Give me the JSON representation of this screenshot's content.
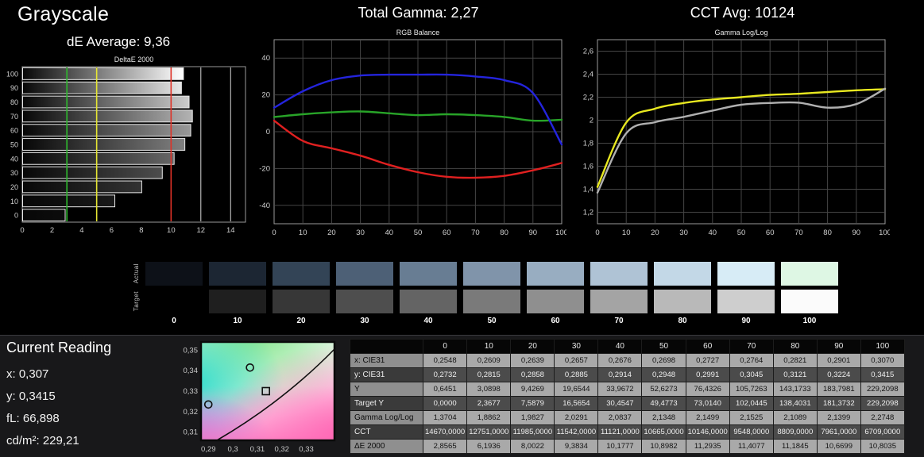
{
  "header": {
    "title": "Grayscale",
    "de_average": "dE Average: 9,36",
    "total_gamma": "Total Gamma: 2,27",
    "cct_avg": "CCT Avg: 10124"
  },
  "chart_data": [
    {
      "id": "deltae",
      "type": "bar",
      "title": "DeltaE 2000",
      "orientation": "horizontal",
      "categories": [
        100,
        90,
        80,
        70,
        60,
        50,
        40,
        30,
        20,
        10,
        0
      ],
      "values": [
        10.8035,
        10.6699,
        11.1845,
        11.4077,
        11.2935,
        10.8982,
        10.1777,
        9.3834,
        8.0022,
        6.1936,
        2.8565
      ],
      "xlim": [
        0,
        15
      ],
      "xticks": [
        0,
        2,
        4,
        6,
        8,
        10,
        12,
        14
      ],
      "grid_lines_x": [
        12,
        14
      ],
      "reference_lines": [
        {
          "x": 3,
          "color": "#2eb82e"
        },
        {
          "x": 5,
          "color": "#e6e633"
        },
        {
          "x": 10,
          "color": "#e03228"
        }
      ]
    },
    {
      "id": "rgb-balance",
      "type": "line",
      "title": "RGB Balance",
      "x": [
        0,
        10,
        20,
        30,
        40,
        50,
        60,
        70,
        80,
        90,
        100
      ],
      "ylim": [
        -50,
        50
      ],
      "yticks": [
        40,
        20,
        0,
        -20,
        -40
      ],
      "series": [
        {
          "name": "Red",
          "color": "#e02020",
          "values": [
            6,
            -5,
            -9,
            -13,
            -18,
            -22,
            -24.5,
            -25,
            -24,
            -21,
            -17
          ]
        },
        {
          "name": "Green",
          "color": "#28a428",
          "values": [
            8,
            9.5,
            10.5,
            11,
            10,
            9,
            9.5,
            9,
            8,
            6,
            6.5
          ]
        },
        {
          "name": "Blue",
          "color": "#2424dd",
          "values": [
            13,
            22,
            28,
            30.5,
            31,
            31,
            31,
            30,
            28,
            21,
            -7
          ]
        }
      ]
    },
    {
      "id": "gamma-loglog",
      "type": "line",
      "title": "Gamma Log/Log",
      "x": [
        0,
        10,
        20,
        30,
        40,
        50,
        60,
        70,
        80,
        90,
        100
      ],
      "ylim": [
        1.1,
        2.7
      ],
      "yticks": [
        2.6,
        2.4,
        2.2,
        2.0,
        1.8,
        1.6,
        1.4,
        1.2
      ],
      "ytick_labels": [
        "2,6",
        "2,4",
        "2,2",
        "2",
        "1,8",
        "1,6",
        "1,4",
        "1,2"
      ],
      "series": [
        {
          "name": "Target",
          "color": "#e8e820",
          "values": [
            1.42,
            1.98,
            2.1,
            2.15,
            2.18,
            2.2,
            2.22,
            2.23,
            2.245,
            2.26,
            2.27
          ]
        },
        {
          "name": "Measured",
          "color": "#b0b0b0",
          "values": [
            1.3704,
            1.8862,
            1.9827,
            2.0291,
            2.0837,
            2.1348,
            2.1499,
            2.1525,
            2.1089,
            2.1399,
            2.2748
          ]
        }
      ]
    },
    {
      "id": "cie",
      "type": "scatter",
      "title": "CIE chromaticity zoom",
      "xlim": [
        0.287,
        0.3415
      ],
      "ylim": [
        0.306,
        0.354
      ],
      "xticks": [
        0.29,
        0.3,
        0.31,
        0.32,
        0.33
      ],
      "xtick_labels": [
        "0,29",
        "0,3",
        "0,31",
        "0,32",
        "0,33"
      ],
      "yticks": [
        0.35,
        0.34,
        0.33,
        0.32,
        0.31
      ],
      "ytick_labels": [
        "0,35",
        "0,34",
        "0,33",
        "0,32",
        "0,31"
      ],
      "locus_line": [
        [
          0.2935,
          0.306
        ],
        [
          0.3415,
          0.3505
        ]
      ],
      "points": [
        {
          "shape": "circle",
          "x": 0.307,
          "y": 0.3415,
          "label": "current-reading"
        },
        {
          "shape": "circle",
          "x": 0.29,
          "y": 0.3235,
          "label": "reading-low"
        },
        {
          "shape": "square",
          "x": 0.3135,
          "y": 0.33,
          "label": "target-white"
        }
      ]
    }
  ],
  "swatches": {
    "row_labels": [
      "Actual",
      "Target"
    ],
    "levels": [
      "0",
      "10",
      "20",
      "30",
      "40",
      "50",
      "60",
      "70",
      "80",
      "90",
      "100"
    ],
    "actual_colors": [
      "#0d1118",
      "#1c2633",
      "#334456",
      "#4d6076",
      "#687d93",
      "#8094aa",
      "#98adc1",
      "#afc3d5",
      "#c3d8e7",
      "#d7ecf6",
      "#def7e4"
    ],
    "target_colors": [
      "#000000",
      "#1f1f1f",
      "#373737",
      "#4e4e4e",
      "#646464",
      "#7a7a7a",
      "#8f8f8f",
      "#a4a4a4",
      "#b9b9b9",
      "#cecece",
      "#fbfbfb"
    ]
  },
  "current_reading": {
    "title": "Current Reading",
    "items": [
      {
        "label": "x:",
        "value": "0,307"
      },
      {
        "label": "y:",
        "value": "0,3415"
      },
      {
        "label": "fL:",
        "value": "66,898"
      },
      {
        "label": "cd/m²:",
        "value": "229,21"
      }
    ]
  },
  "table": {
    "columns": [
      "",
      "0",
      "10",
      "20",
      "30",
      "40",
      "50",
      "60",
      "70",
      "80",
      "90",
      "100"
    ],
    "rows": [
      {
        "label": "x: CIE31",
        "values": [
          "0,2548",
          "0,2609",
          "0,2639",
          "0,2657",
          "0,2676",
          "0,2698",
          "0,2727",
          "0,2764",
          "0,2821",
          "0,2901",
          "0,3070"
        ]
      },
      {
        "label": "y: CIE31",
        "values": [
          "0,2732",
          "0,2815",
          "0,2858",
          "0,2885",
          "0,2914",
          "0,2948",
          "0,2991",
          "0,3045",
          "0,3121",
          "0,3224",
          "0,3415"
        ]
      },
      {
        "label": "Y",
        "values": [
          "0,6451",
          "3,0898",
          "9,4269",
          "19,6544",
          "33,9672",
          "52,6273",
          "76,4326",
          "105,7263",
          "143,1733",
          "183,7981",
          "229,2098"
        ]
      },
      {
        "label": "Target Y",
        "values": [
          "0,0000",
          "2,3677",
          "7,5879",
          "16,5654",
          "30,4547",
          "49,4773",
          "73,0140",
          "102,0445",
          "138,4031",
          "181,3732",
          "229,2098"
        ]
      },
      {
        "label": "Gamma Log/Log",
        "values": [
          "1,3704",
          "1,8862",
          "1,9827",
          "2,0291",
          "2,0837",
          "2,1348",
          "2,1499",
          "2,1525",
          "2,1089",
          "2,1399",
          "2,2748"
        ]
      },
      {
        "label": "CCT",
        "values": [
          "14670,0000",
          "12751,0000",
          "11985,0000",
          "11542,0000",
          "11121,0000",
          "10665,0000",
          "10146,0000",
          "9548,0000",
          "8809,0000",
          "7961,0000",
          "6709,0000"
        ]
      },
      {
        "label": "ΔE 2000",
        "values": [
          "2,8565",
          "6,1936",
          "8,0022",
          "9,3834",
          "10,1777",
          "10,8982",
          "11,2935",
          "11,4077",
          "11,1845",
          "10,6699",
          "10,8035"
        ]
      }
    ]
  }
}
